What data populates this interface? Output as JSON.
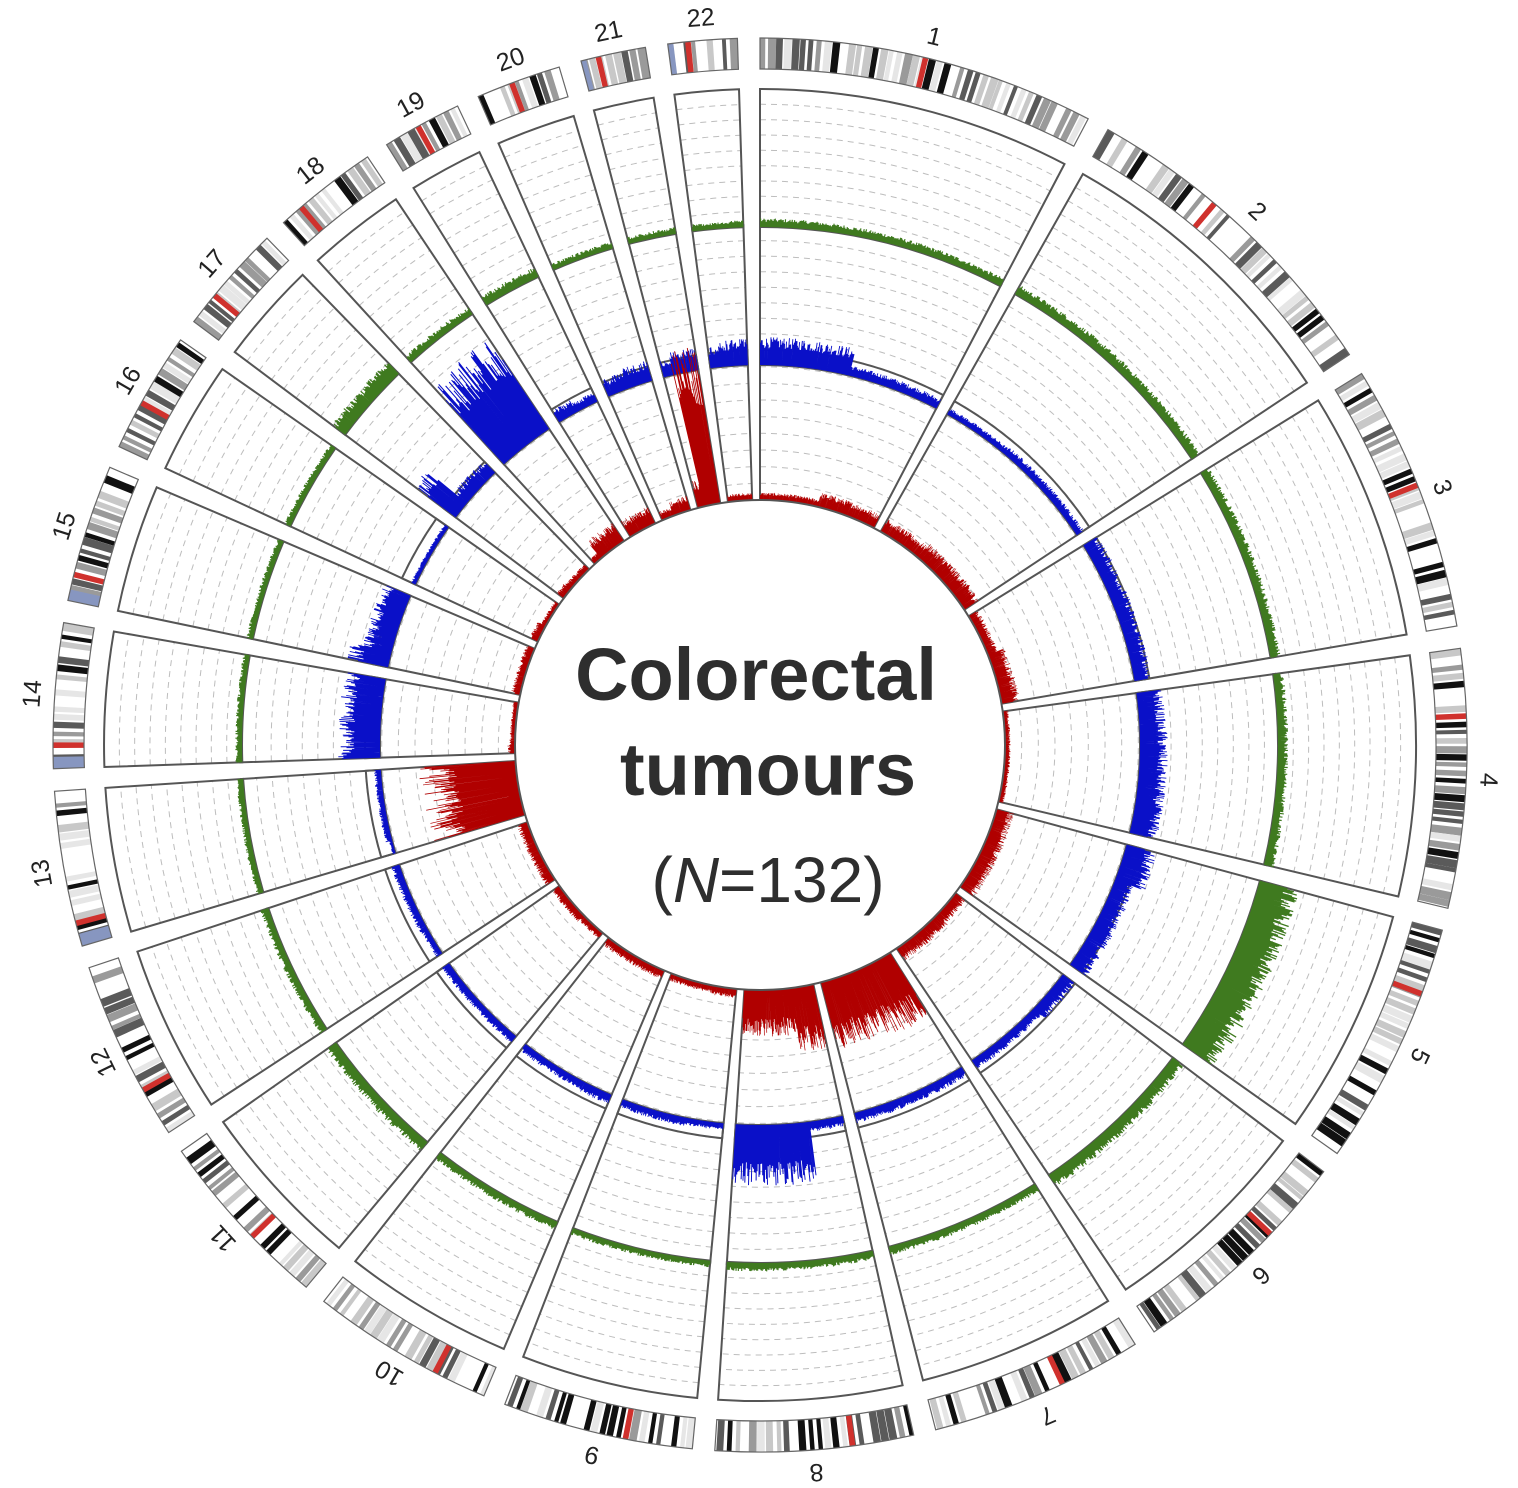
{
  "title_line1": "Colorectal",
  "title_line2": "tumours",
  "subtitle_prefix": "(",
  "subtitle_var": "N",
  "subtitle_rest": "=132)",
  "colors": {
    "track_outer": "#3f7a1f",
    "track_middle": "#0a10c8",
    "track_inner": "#b00000",
    "frame": "#555555",
    "grid": "#bdbdbd",
    "centromere": "#d0312d",
    "acrocentric": "#8796c0"
  },
  "chart_data": {
    "type": "circos",
    "tracks": [
      {
        "name": "outer",
        "color": "#3f7a1f",
        "level_scale": [
          0,
          1
        ]
      },
      {
        "name": "middle",
        "color": "#0a10c8",
        "level_scale": [
          0,
          1
        ]
      },
      {
        "name": "inner",
        "color": "#b00000",
        "level_scale": [
          0,
          1
        ]
      }
    ],
    "chromosomes": [
      {
        "label": "1",
        "length": 249,
        "centromere": 0.49,
        "outer": 0.05,
        "middle": [
          0.16,
          0.06
        ],
        "inner": [
          0.04,
          0.08
        ]
      },
      {
        "label": "2",
        "length": 243,
        "centromere": 0.39,
        "outer": 0.06,
        "middle": [
          0.04,
          0.05
        ],
        "inner": [
          0.08,
          0.1
        ]
      },
      {
        "label": "3",
        "length": 198,
        "centromere": 0.46,
        "outer": 0.06,
        "middle": [
          0.1,
          0.1
        ],
        "inner": [
          0.06,
          0.1
        ]
      },
      {
        "label": "4",
        "length": 191,
        "centromere": 0.26,
        "outer": 0.06,
        "middle": [
          0.15,
          0.16
        ],
        "inner": [
          0.03,
          0.03
        ]
      },
      {
        "label": "5",
        "length": 181,
        "centromere": 0.27,
        "outer": 0.24,
        "middle": [
          0.18,
          0.12
        ],
        "inner": [
          0.1,
          0.1
        ]
      },
      {
        "label": "6",
        "length": 171,
        "centromere": 0.35,
        "outer": 0.08,
        "middle": [
          0.09,
          0.06
        ],
        "inner": [
          0.07,
          0.08
        ]
      },
      {
        "label": "7",
        "length": 159,
        "centromere": 0.38,
        "outer": 0.05,
        "middle": [
          0.06,
          0.06
        ],
        "inner": [
          0.4,
          0.37
        ]
      },
      {
        "label": "8",
        "length": 146,
        "centromere": 0.31,
        "outer": 0.05,
        "middle": [
          0.06,
          0.35
        ],
        "inner": [
          0.35,
          0.25
        ]
      },
      {
        "label": "9",
        "length": 141,
        "centromere": 0.35,
        "outer": 0.04,
        "middle": [
          0.04,
          0.05
        ],
        "inner": [
          0.05,
          0.04
        ]
      },
      {
        "label": "10",
        "length": 136,
        "centromere": 0.29,
        "outer": 0.05,
        "middle": [
          0.06,
          0.05
        ],
        "inner": [
          0.05,
          0.05
        ]
      },
      {
        "label": "11",
        "length": 135,
        "centromere": 0.4,
        "outer": 0.07,
        "middle": [
          0.05,
          0.05
        ],
        "inner": [
          0.04,
          0.05
        ]
      },
      {
        "label": "12",
        "length": 134,
        "centromere": 0.27,
        "outer": 0.05,
        "middle": [
          0.04,
          0.05
        ],
        "inner": [
          0.06,
          0.06
        ]
      },
      {
        "label": "13",
        "length": 115,
        "centromere": 0.15,
        "outer": 0.04,
        "middle": [
          0.02,
          0.04
        ],
        "inner": [
          0.52,
          0.52
        ]
      },
      {
        "label": "14",
        "length": 107,
        "centromere": 0.16,
        "outer": 0.04,
        "middle": [
          0.24,
          0.24
        ],
        "inner": [
          0.04,
          0.03
        ]
      },
      {
        "label": "15",
        "length": 102,
        "centromere": 0.19,
        "outer": 0.04,
        "middle": [
          0.24,
          0.17
        ],
        "inner": [
          0.05,
          0.05
        ]
      },
      {
        "label": "16",
        "length": 90,
        "centromere": 0.4,
        "outer": 0.04,
        "middle": [
          0.03,
          0.03
        ],
        "inner": [
          0.05,
          0.03
        ]
      },
      {
        "label": "17",
        "length": 81,
        "centromere": 0.3,
        "outer": 0.1,
        "middle": [
          0.3,
          0.1
        ],
        "inner": [
          0.05,
          0.04
        ]
      },
      {
        "label": "18",
        "length": 78,
        "centromere": 0.22,
        "outer": 0.05,
        "middle": [
          0.6,
          0.62
        ],
        "inner": [
          0.04,
          0.12
        ]
      },
      {
        "label": "19",
        "length": 59,
        "centromere": 0.45,
        "outer": 0.06,
        "middle": [
          0.08,
          0.06
        ],
        "inner": [
          0.1,
          0.1
        ]
      },
      {
        "label": "20",
        "length": 63,
        "centromere": 0.42,
        "outer": 0.04,
        "middle": [
          0.1,
          0.12
        ],
        "inner": [
          0.05,
          0.08
        ]
      },
      {
        "label": "21",
        "length": 48,
        "centromere": 0.27,
        "outer": 0.04,
        "middle": [
          0.1,
          0.13
        ],
        "inner": [
          0.15,
          0.88
        ]
      },
      {
        "label": "22",
        "length": 51,
        "centromere": 0.29,
        "outer": 0.04,
        "middle": [
          0.12,
          0.15
        ],
        "inner": [
          0.04,
          0.04
        ]
      }
    ]
  }
}
